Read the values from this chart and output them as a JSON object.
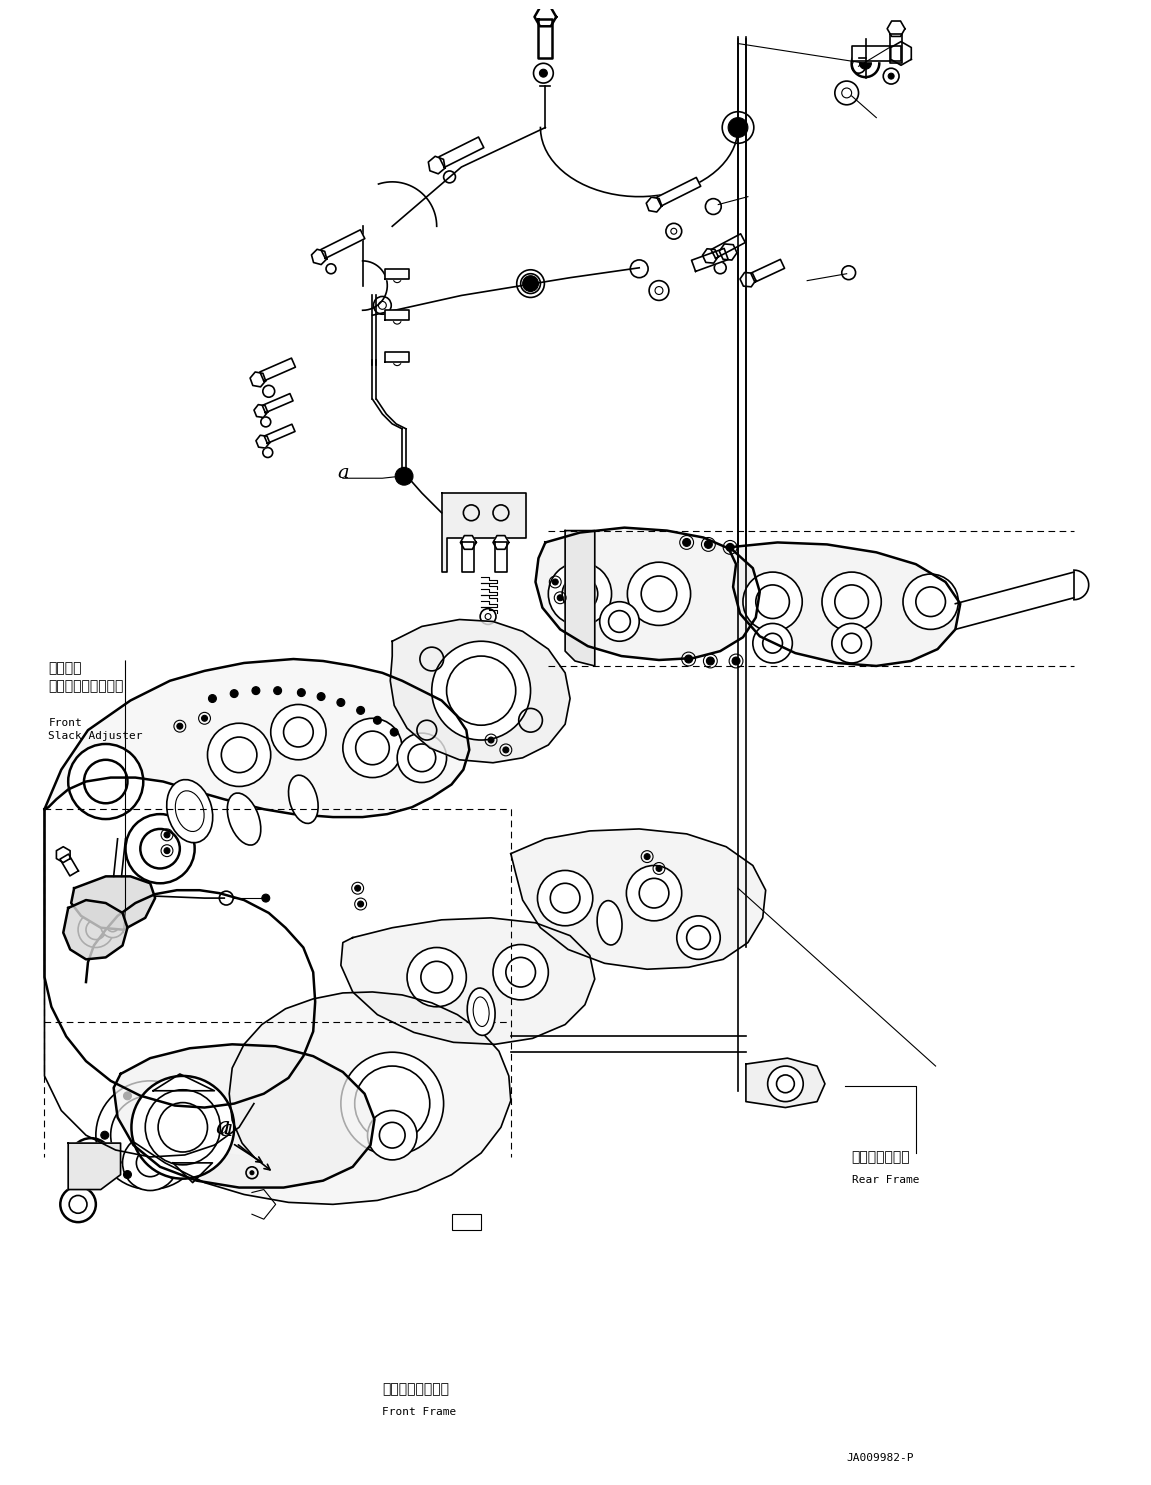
{
  "background_color": "#ffffff",
  "figure_width": 11.51,
  "figure_height": 14.85,
  "dpi": 100,
  "label_front_slack_adjuster_jp": "フロント\nスラックアジャスタ",
  "label_front_slack_adjuster_en": "Front\nSlack Adjuster",
  "label_rear_frame_jp": "リヤーフレーム",
  "label_rear_frame_en": "Rear Frame",
  "label_front_frame_jp": "フロントフレーム",
  "label_front_frame_en": "Front Frame",
  "diagram_id": "JA009982-P",
  "line_color": "#000000",
  "text_color": "#000000",
  "font_size_jp": 10,
  "font_size_en": 9,
  "font_size_id": 8,
  "font_size_a": 14
}
